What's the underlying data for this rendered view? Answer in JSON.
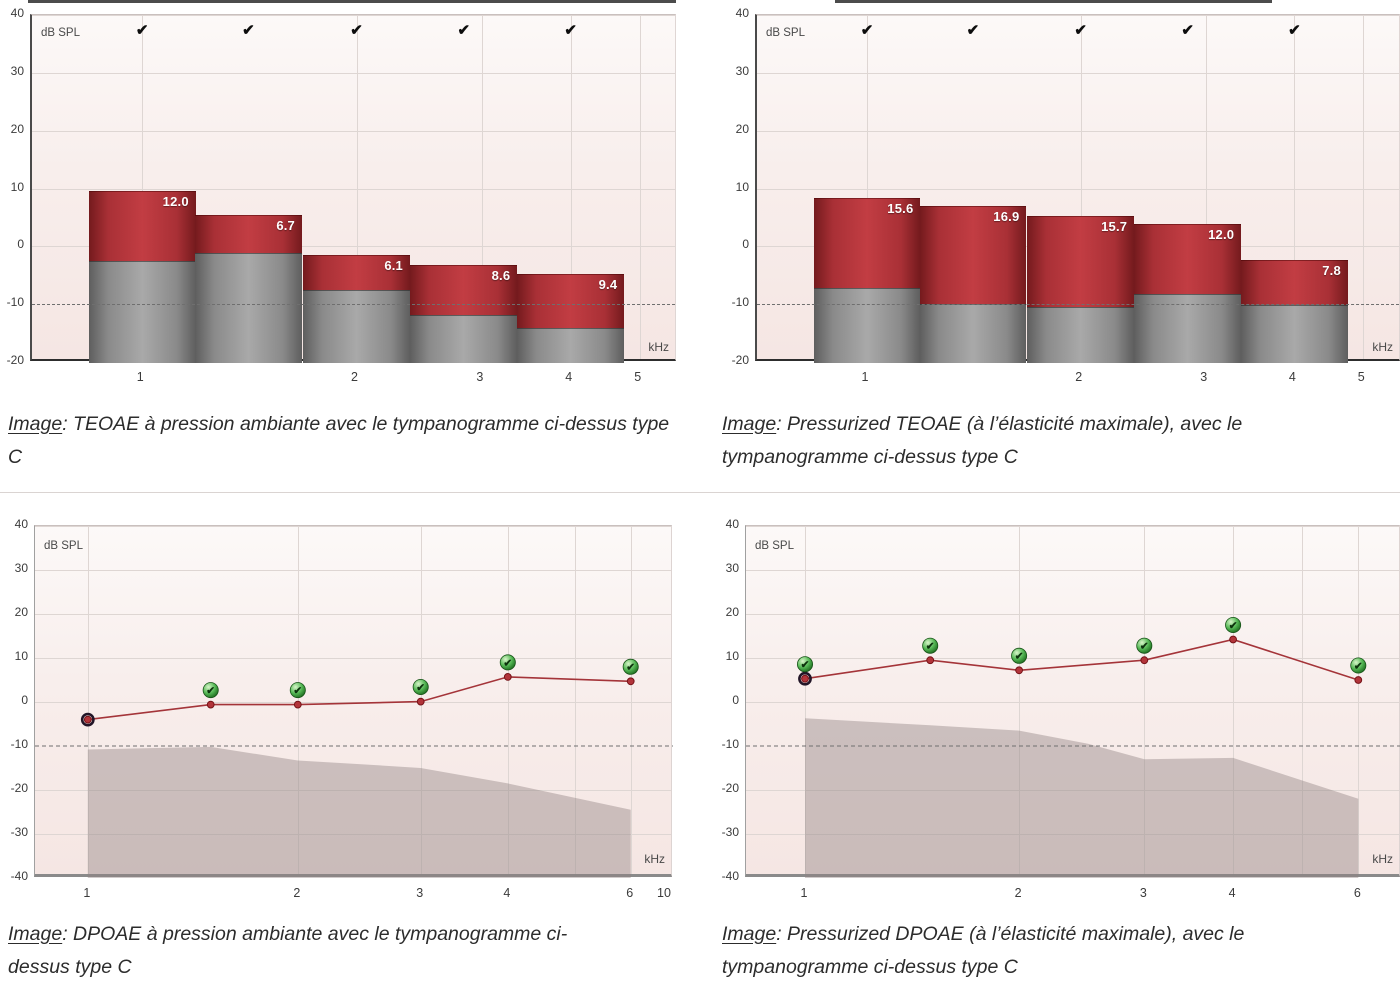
{
  "labels": {
    "y_unit": "dB SPL",
    "x_unit": "kHz",
    "check_glyph": "✔"
  },
  "captions": [
    {
      "prefix": "Image",
      "sep": ": ",
      "text": "TEOAE à pression ambiante avec le tympanogramme ci-dessus type C"
    },
    {
      "prefix": "Image",
      "sep": ": ",
      "text": "Pressurized TEOAE (à l’élasticité maximale), avec le tympanogramme ci-dessus type C"
    },
    {
      "prefix": "Image",
      "sep": ": ",
      "text": "DPOAE à pression ambiante avec le tympanogramme ci-dessus type C"
    },
    {
      "prefix": "Image",
      "sep": ": ",
      "text": "Pressurized DPOAE (à l’élasticité maximale), avec le tympanogramme ci-dessus type C"
    }
  ],
  "chart_data": [
    {
      "id": "teoae-ambient",
      "type": "bar",
      "title": "TEOAE à pression ambiante",
      "ylabel": "dB SPL",
      "xlabel": "kHz",
      "ylim": [
        -20,
        40
      ],
      "yticks": [
        40,
        30,
        20,
        10,
        0,
        -10,
        -20
      ],
      "xticks": [
        1,
        2,
        3,
        4,
        5
      ],
      "grid_freqs": [
        1,
        2,
        3,
        4,
        5
      ],
      "xlim_khz": [
        0.7,
        5.66
      ],
      "threshold_db": -10,
      "bars": [
        {
          "freq_khz": 1.0,
          "signal_db": 9.5,
          "noise_db": -2.5,
          "snr": "12.0",
          "checkmark": true
        },
        {
          "freq_khz": 1.41,
          "signal_db": 5.5,
          "noise_db": -1.2,
          "snr": "6.7",
          "checkmark": true
        },
        {
          "freq_khz": 2.0,
          "signal_db": -1.5,
          "noise_db": -7.6,
          "snr": "6.1",
          "checkmark": true
        },
        {
          "freq_khz": 2.83,
          "signal_db": -3.2,
          "noise_db": -11.8,
          "snr": "8.6",
          "checkmark": true
        },
        {
          "freq_khz": 4.0,
          "signal_db": -4.7,
          "noise_db": -14.1,
          "snr": "9.4",
          "checkmark": true
        }
      ]
    },
    {
      "id": "teoae-pressurized",
      "type": "bar",
      "title": "Pressurized TEOAE",
      "ylabel": "dB SPL",
      "xlabel": "kHz",
      "ylim": [
        -20,
        40
      ],
      "yticks": [
        40,
        30,
        20,
        10,
        0,
        -10,
        -20
      ],
      "xticks": [
        1,
        2,
        3,
        4,
        5
      ],
      "grid_freqs": [
        1,
        2,
        3,
        4,
        5
      ],
      "xlim_khz": [
        0.7,
        5.67
      ],
      "threshold_db": -10,
      "bars": [
        {
          "freq_khz": 1.0,
          "signal_db": 8.4,
          "noise_db": -7.2,
          "snr": "15.6",
          "checkmark": true
        },
        {
          "freq_khz": 1.41,
          "signal_db": 6.9,
          "noise_db": -10.0,
          "snr": "16.9",
          "checkmark": true
        },
        {
          "freq_khz": 2.0,
          "signal_db": 5.2,
          "noise_db": -10.5,
          "snr": "15.7",
          "checkmark": true
        },
        {
          "freq_khz": 2.83,
          "signal_db": 3.8,
          "noise_db": -8.2,
          "snr": "12.0",
          "checkmark": true
        },
        {
          "freq_khz": 4.0,
          "signal_db": -2.3,
          "noise_db": -10.1,
          "snr": "7.8",
          "checkmark": true
        }
      ]
    },
    {
      "id": "dpoae-ambient",
      "type": "line",
      "title": "DPOAE à pression ambiante",
      "ylabel": "dB SPL",
      "xlabel": "kHz",
      "ylim": [
        -40,
        40
      ],
      "yticks": [
        40,
        30,
        20,
        10,
        0,
        -10,
        -20,
        -30,
        -40
      ],
      "xticks": [
        1,
        2,
        3,
        4,
        6,
        10
      ],
      "grid_freqs": [
        1,
        2,
        3,
        4,
        5,
        6
      ],
      "xlim_khz": [
        0.84,
        6.9
      ],
      "threshold_db": -10,
      "points": [
        {
          "freq_khz": 1.0,
          "level_db": -4.0,
          "ring": true,
          "check": false
        },
        {
          "freq_khz": 1.5,
          "level_db": -0.6,
          "ring": false,
          "check": true
        },
        {
          "freq_khz": 2.0,
          "level_db": -0.6,
          "ring": false,
          "check": true
        },
        {
          "freq_khz": 3.0,
          "level_db": 0.1,
          "ring": false,
          "check": true
        },
        {
          "freq_khz": 4.0,
          "level_db": 5.7,
          "ring": false,
          "check": true
        },
        {
          "freq_khz": 6.0,
          "level_db": 4.7,
          "ring": false,
          "check": true
        }
      ],
      "noise_floor": [
        [
          1,
          -10.8
        ],
        [
          1.5,
          -10.2
        ],
        [
          2,
          -13.3
        ],
        [
          2.5,
          -14.2
        ],
        [
          3,
          -15
        ],
        [
          4,
          -18.5
        ],
        [
          6,
          -24.5
        ]
      ]
    },
    {
      "id": "dpoae-pressurized",
      "type": "line",
      "title": "Pressurized DPOAE",
      "ylabel": "dB SPL",
      "xlabel": "kHz",
      "ylim": [
        -40,
        40
      ],
      "yticks": [
        40,
        30,
        20,
        10,
        0,
        -10,
        -20,
        -30,
        -40
      ],
      "xticks": [
        1,
        2,
        3,
        4,
        6
      ],
      "grid_freqs": [
        1,
        2,
        3,
        4,
        5,
        6
      ],
      "xlim_khz": [
        0.826,
        6.89
      ],
      "threshold_db": -10,
      "points": [
        {
          "freq_khz": 1.0,
          "level_db": 5.3,
          "ring": true,
          "check": true
        },
        {
          "freq_khz": 1.5,
          "level_db": 9.5,
          "ring": false,
          "check": true
        },
        {
          "freq_khz": 2.0,
          "level_db": 7.2,
          "ring": false,
          "check": true
        },
        {
          "freq_khz": 3.0,
          "level_db": 9.5,
          "ring": false,
          "check": true
        },
        {
          "freq_khz": 4.0,
          "level_db": 14.2,
          "ring": false,
          "check": true
        },
        {
          "freq_khz": 6.0,
          "level_db": 5.0,
          "ring": false,
          "check": true
        }
      ],
      "noise_floor": [
        [
          1,
          -3.7
        ],
        [
          1.5,
          -5.3
        ],
        [
          2,
          -6.5
        ],
        [
          2.5,
          -9.5
        ],
        [
          3,
          -13
        ],
        [
          4,
          -12.7
        ],
        [
          6,
          -22
        ]
      ]
    }
  ],
  "colors": {
    "bar_red_center": "#c23d43",
    "bar_red_edge": "#741a1d",
    "bar_gray_center": "#a9a9a9",
    "bar_gray_edge": "#5e5e5e",
    "line_red": "#a43439",
    "point_fill": "#b2343a",
    "noise_area": "#8e8080",
    "green_check_ball": "#3f9e3f",
    "plot_bg_bottom": "#f5e6e3",
    "threshold_dash": "#6f6f6f"
  }
}
